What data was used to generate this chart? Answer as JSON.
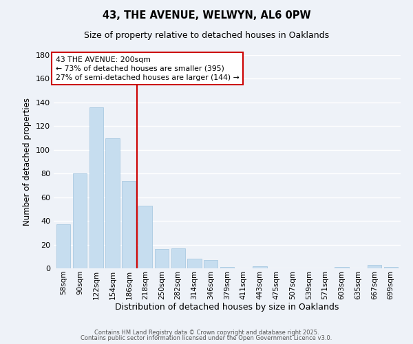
{
  "title": "43, THE AVENUE, WELWYN, AL6 0PW",
  "subtitle": "Size of property relative to detached houses in Oaklands",
  "xlabel": "Distribution of detached houses by size in Oaklands",
  "ylabel": "Number of detached properties",
  "bar_labels": [
    "58sqm",
    "90sqm",
    "122sqm",
    "154sqm",
    "186sqm",
    "218sqm",
    "250sqm",
    "282sqm",
    "314sqm",
    "346sqm",
    "379sqm",
    "411sqm",
    "443sqm",
    "475sqm",
    "507sqm",
    "539sqm",
    "571sqm",
    "603sqm",
    "635sqm",
    "667sqm",
    "699sqm"
  ],
  "bar_values": [
    37,
    80,
    136,
    110,
    74,
    53,
    16,
    17,
    8,
    7,
    1,
    0,
    2,
    0,
    0,
    0,
    0,
    1,
    0,
    3,
    1
  ],
  "bar_color": "#c6ddef",
  "bar_edge_color": "#a0c4de",
  "vline_x": 4.5,
  "vline_color": "#cc0000",
  "ylim": [
    0,
    180
  ],
  "yticks": [
    0,
    20,
    40,
    60,
    80,
    100,
    120,
    140,
    160,
    180
  ],
  "annotation_title": "43 THE AVENUE: 200sqm",
  "annotation_line1": "← 73% of detached houses are smaller (395)",
  "annotation_line2": "27% of semi-detached houses are larger (144) →",
  "annotation_box_color": "#ffffff",
  "annotation_box_edge": "#cc0000",
  "footer1": "Contains HM Land Registry data © Crown copyright and database right 2025.",
  "footer2": "Contains public sector information licensed under the Open Government Licence v3.0.",
  "background_color": "#eef2f8",
  "grid_color": "#ffffff"
}
